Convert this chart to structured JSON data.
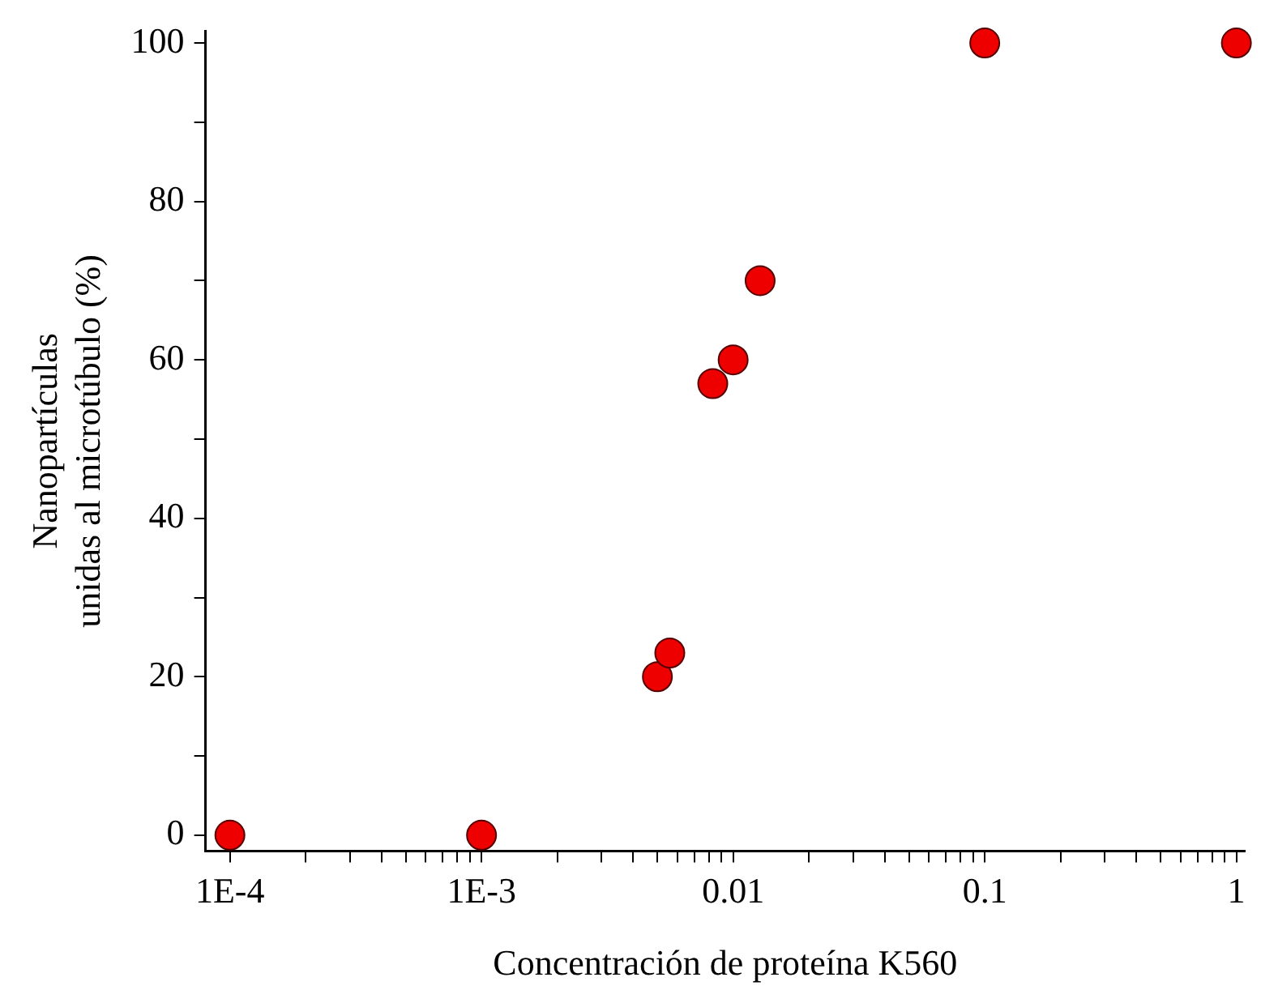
{
  "chart_data": {
    "type": "scatter",
    "xlabel": "Concentración de proteína K560",
    "ylabel": "Nanopartículas\nunidas al microtúbulo (%)",
    "log": "x",
    "marker": "circle",
    "grid": false,
    "x": [
      0.0001,
      0.001,
      0.005,
      0.0056,
      0.0083,
      0.01,
      0.0128,
      0.1,
      1
    ],
    "series": [
      {
        "color": "#ee0000",
        "values": [
          0,
          0,
          20,
          23,
          57,
          60,
          70,
          100,
          100
        ]
      }
    ],
    "xlim": [
      8e-05,
      1.08
    ],
    "ylim": [
      -2,
      101.5
    ],
    "xticks": [
      {
        "value": 0.0001,
        "label": "1E-4"
      },
      {
        "value": 0.0002,
        "label": null
      },
      {
        "value": 0.0003,
        "label": null
      },
      {
        "value": 0.0004,
        "label": null
      },
      {
        "value": 0.0005,
        "label": null
      },
      {
        "value": 0.0006,
        "label": null
      },
      {
        "value": 0.0007,
        "label": null
      },
      {
        "value": 0.0008,
        "label": null
      },
      {
        "value": 0.0009,
        "label": null
      },
      {
        "value": 0.001,
        "label": "1E-3"
      },
      {
        "value": 0.002,
        "label": null
      },
      {
        "value": 0.003,
        "label": null
      },
      {
        "value": 0.004,
        "label": null
      },
      {
        "value": 0.005,
        "label": null
      },
      {
        "value": 0.006,
        "label": null
      },
      {
        "value": 0.007,
        "label": null
      },
      {
        "value": 0.008,
        "label": null
      },
      {
        "value": 0.009,
        "label": null
      },
      0.01,
      {
        "value": 0.02,
        "label": null
      },
      {
        "value": 0.03,
        "label": null
      },
      {
        "value": 0.04,
        "label": null
      },
      {
        "value": 0.05,
        "label": null
      },
      {
        "value": 0.06,
        "label": null
      },
      {
        "value": 0.07,
        "label": null
      },
      {
        "value": 0.08,
        "label": null
      },
      {
        "value": 0.09,
        "label": null
      },
      0.1,
      {
        "value": 0.2,
        "label": null
      },
      {
        "value": 0.3,
        "label": null
      },
      {
        "value": 0.4,
        "label": null
      },
      {
        "value": 0.5,
        "label": null
      },
      {
        "value": 0.6,
        "label": null
      },
      {
        "value": 0.7,
        "label": null
      },
      {
        "value": 0.8,
        "label": null
      },
      {
        "value": 0.9,
        "label": null
      },
      1
    ],
    "yticks": [
      0,
      {
        "value": 10,
        "label": null
      },
      20,
      {
        "value": 30,
        "label": null
      },
      40,
      {
        "value": 50,
        "label": null
      },
      60,
      {
        "value": 70,
        "label": null
      },
      80,
      {
        "value": 90,
        "label": null
      },
      100
    ]
  }
}
